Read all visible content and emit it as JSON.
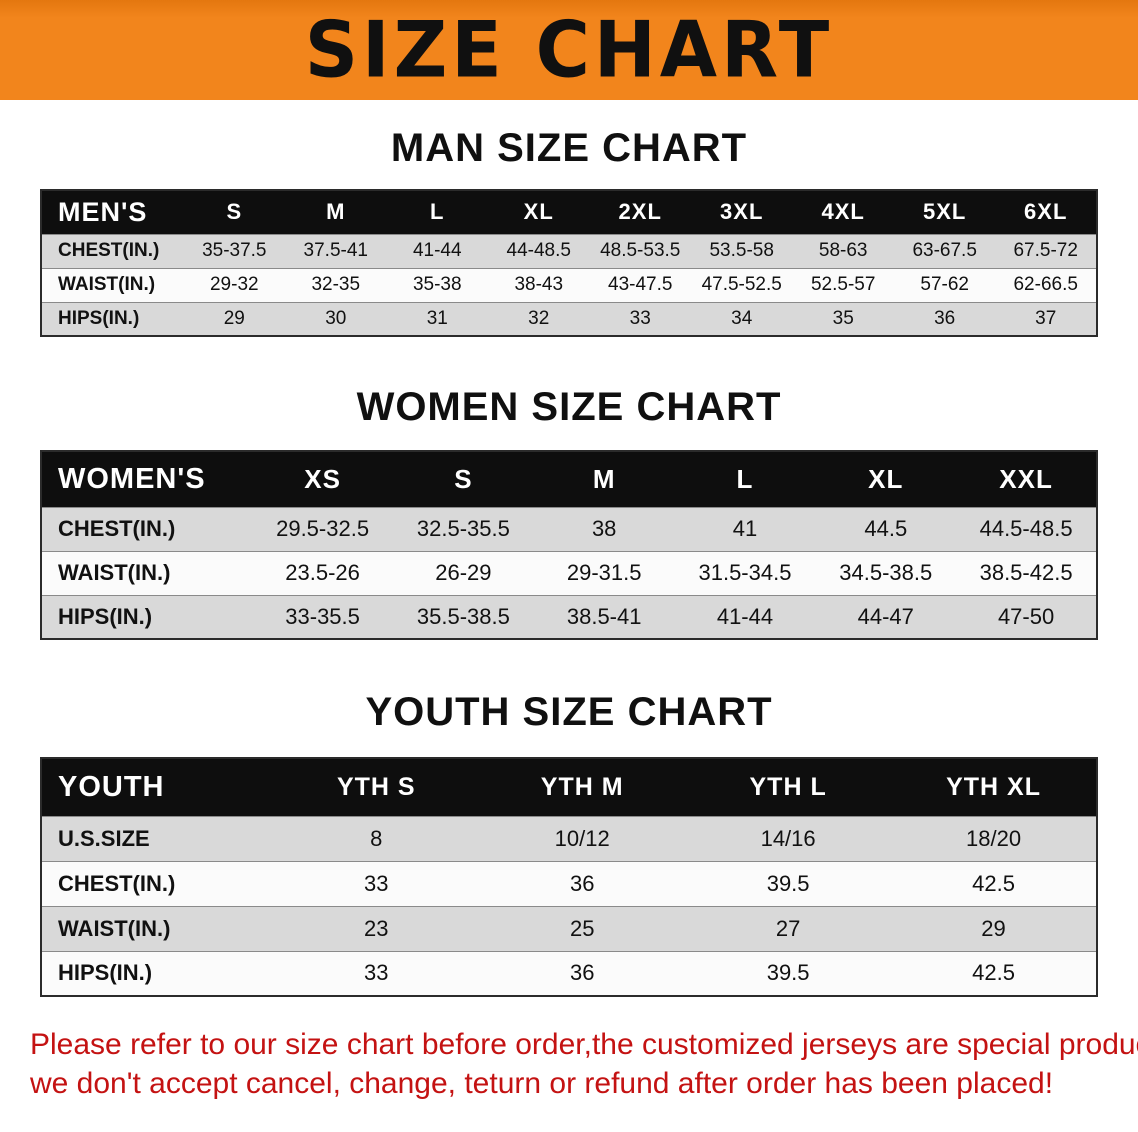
{
  "banner": {
    "title": "SIZE CHART",
    "background_color": "#F2851C"
  },
  "sections": [
    {
      "id": "men",
      "heading": "MAN SIZE CHART",
      "table": {
        "header_label": "MEN'S",
        "columns": [
          "S",
          "M",
          "L",
          "XL",
          "2XL",
          "3XL",
          "4XL",
          "5XL",
          "6XL"
        ],
        "rows": [
          {
            "label": "CHEST(IN.)",
            "values": [
              "35-37.5",
              "37.5-41",
              "41-44",
              "44-48.5",
              "48.5-53.5",
              "53.5-58",
              "58-63",
              "63-67.5",
              "67.5-72"
            ]
          },
          {
            "label": "WAIST(IN.)",
            "values": [
              "29-32",
              "32-35",
              "35-38",
              "38-43",
              "43-47.5",
              "47.5-52.5",
              "52.5-57",
              "57-62",
              "62-66.5"
            ]
          },
          {
            "label": "HIPS(IN.)",
            "values": [
              "29",
              "30",
              "31",
              "32",
              "33",
              "34",
              "35",
              "36",
              "37"
            ]
          }
        ]
      }
    },
    {
      "id": "women",
      "heading": "WOMEN SIZE CHART",
      "table": {
        "header_label": "WOMEN'S",
        "columns": [
          "XS",
          "S",
          "M",
          "L",
          "XL",
          "XXL"
        ],
        "rows": [
          {
            "label": "CHEST(IN.)",
            "values": [
              "29.5-32.5",
              "32.5-35.5",
              "38",
              "41",
              "44.5",
              "44.5-48.5"
            ]
          },
          {
            "label": "WAIST(IN.)",
            "values": [
              "23.5-26",
              "26-29",
              "29-31.5",
              "31.5-34.5",
              "34.5-38.5",
              "38.5-42.5"
            ]
          },
          {
            "label": "HIPS(IN.)",
            "values": [
              "33-35.5",
              "35.5-38.5",
              "38.5-41",
              "41-44",
              "44-47",
              "47-50"
            ]
          }
        ]
      }
    },
    {
      "id": "youth",
      "heading": "YOUTH SIZE CHART",
      "table": {
        "header_label": "YOUTH",
        "columns": [
          "YTH S",
          "YTH M",
          "YTH L",
          "YTH XL"
        ],
        "rows": [
          {
            "label": "U.S.SIZE",
            "values": [
              "8",
              "10/12",
              "14/16",
              "18/20"
            ]
          },
          {
            "label": "CHEST(IN.)",
            "values": [
              "33",
              "36",
              "39.5",
              "42.5"
            ]
          },
          {
            "label": "WAIST(IN.)",
            "values": [
              "23",
              "25",
              "27",
              "29"
            ]
          },
          {
            "label": "HIPS(IN.)",
            "values": [
              "33",
              "36",
              "39.5",
              "42.5"
            ]
          }
        ]
      }
    }
  ],
  "disclaimer": {
    "line1": "Please refer to our size chart before order,the customized jerseys are special products,",
    "line2": "we don't accept cancel, change, teturn or refund after order has been placed!",
    "text_color": "#C41212"
  }
}
